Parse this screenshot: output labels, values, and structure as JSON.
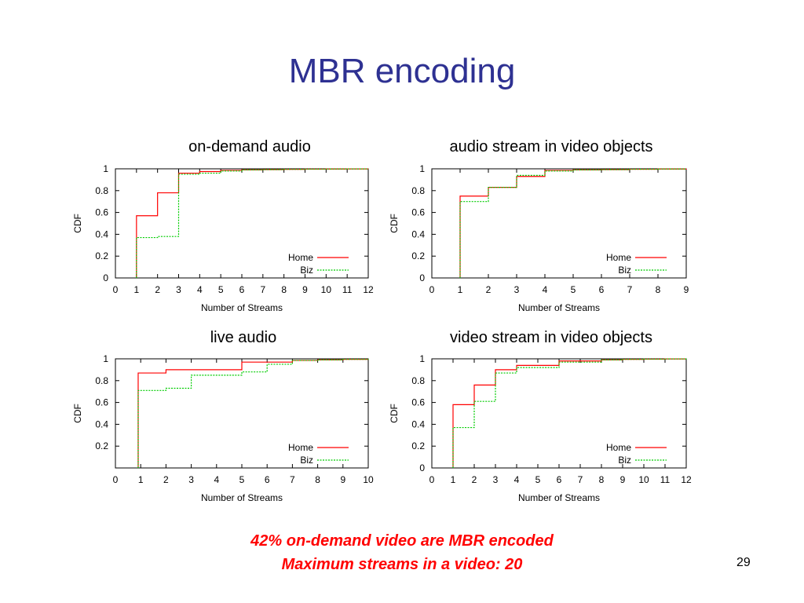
{
  "slide": {
    "title": "MBR encoding",
    "notes": [
      "42% on-demand video are MBR encoded",
      "Maximum streams in a video: 20"
    ],
    "page_number": "29"
  },
  "colors": {
    "title": "#2e3192",
    "home": "#ff0000",
    "biz": "#00cc00",
    "note": "#ff0000"
  },
  "chart_data": [
    {
      "type": "line",
      "title": "on-demand audio",
      "xlabel": "Number of Streams",
      "ylabel": "CDF",
      "xlim": [
        0,
        12
      ],
      "ylim": [
        0,
        1
      ],
      "xticks": [
        "0",
        "1",
        "2",
        "3",
        "4",
        "5",
        "6",
        "7",
        "8",
        "9",
        "10",
        "11",
        "12"
      ],
      "yticks": [
        "0",
        "0.2",
        "0.4",
        "0.6",
        "0.8",
        "1"
      ],
      "legend_position": "bottom-right",
      "series": [
        {
          "name": "Home",
          "style": "solid",
          "x": [
            1,
            1,
            2,
            3,
            4,
            5,
            6,
            7,
            8,
            9,
            10,
            11,
            12
          ],
          "y": [
            0,
            0.57,
            0.78,
            0.96,
            0.975,
            0.985,
            0.99,
            0.993,
            0.995,
            0.997,
            0.998,
            0.999,
            1.0
          ]
        },
        {
          "name": "Biz",
          "style": "dashed",
          "x": [
            1,
            1,
            2,
            3,
            4,
            5,
            6,
            7,
            8,
            9,
            10,
            11,
            12
          ],
          "y": [
            0,
            0.37,
            0.38,
            0.95,
            0.96,
            0.98,
            0.99,
            0.993,
            0.995,
            0.997,
            0.998,
            0.999,
            1.0
          ]
        }
      ]
    },
    {
      "type": "line",
      "title": "audio stream in video objects",
      "xlabel": "Number of Streams",
      "ylabel": "CDF",
      "xlim": [
        0,
        9
      ],
      "ylim": [
        0,
        1
      ],
      "xticks": [
        "0",
        "1",
        "2",
        "3",
        "4",
        "5",
        "6",
        "7",
        "8",
        "9"
      ],
      "yticks": [
        "0",
        "0.2",
        "0.4",
        "0.6",
        "0.8",
        "1"
      ],
      "legend_position": "bottom-right",
      "series": [
        {
          "name": "Home",
          "style": "solid",
          "x": [
            1,
            1,
            2,
            3,
            4,
            5,
            6,
            7,
            8,
            9
          ],
          "y": [
            0,
            0.75,
            0.83,
            0.93,
            0.985,
            0.99,
            0.993,
            0.996,
            0.998,
            1.0
          ]
        },
        {
          "name": "Biz",
          "style": "dashed",
          "x": [
            1,
            1,
            2,
            3,
            4,
            5,
            6,
            7,
            8,
            9
          ],
          "y": [
            0,
            0.7,
            0.83,
            0.94,
            0.98,
            0.99,
            0.993,
            0.996,
            0.998,
            1.0
          ]
        }
      ]
    },
    {
      "type": "line",
      "title": "live audio",
      "xlabel": "Number of Streams",
      "ylabel": "CDF",
      "xlim": [
        0,
        10
      ],
      "ylim": [
        0,
        1
      ],
      "xticks": [
        "0",
        "1",
        "2",
        "3",
        "4",
        "5",
        "6",
        "7",
        "8",
        "9",
        "10"
      ],
      "yticks": [
        "0.2",
        "0.4",
        "0.6",
        "0.8",
        "1"
      ],
      "legend_position": "bottom-right",
      "series": [
        {
          "name": "Home",
          "style": "solid",
          "x": [
            0.9,
            0.9,
            2,
            5,
            7,
            8,
            9,
            10
          ],
          "y": [
            0,
            0.87,
            0.9,
            0.97,
            0.985,
            0.99,
            0.995,
            1.0
          ]
        },
        {
          "name": "Biz",
          "style": "dashed",
          "x": [
            0.9,
            0.9,
            2,
            3,
            5,
            6,
            7,
            8,
            9,
            10
          ],
          "y": [
            0,
            0.71,
            0.73,
            0.85,
            0.88,
            0.95,
            0.985,
            0.99,
            0.995,
            1.0
          ]
        }
      ]
    },
    {
      "type": "line",
      "title": "video stream in video objects",
      "xlabel": "Number of Streams",
      "ylabel": "CDF",
      "xlim": [
        0,
        12
      ],
      "ylim": [
        0,
        1
      ],
      "xticks": [
        "0",
        "1",
        "2",
        "3",
        "4",
        "5",
        "6",
        "7",
        "8",
        "9",
        "10",
        "11",
        "12"
      ],
      "yticks": [
        "0",
        "0.2",
        "0.4",
        "0.6",
        "0.8",
        "1"
      ],
      "legend_position": "bottom-right",
      "series": [
        {
          "name": "Home",
          "style": "solid",
          "x": [
            1,
            1,
            2,
            3,
            4,
            6,
            8,
            9,
            10,
            11,
            12
          ],
          "y": [
            0,
            0.58,
            0.76,
            0.9,
            0.94,
            0.98,
            0.99,
            0.995,
            0.997,
            0.999,
            1.0
          ]
        },
        {
          "name": "Biz",
          "style": "dashed",
          "x": [
            1,
            1,
            2,
            3,
            4,
            6,
            8,
            9,
            10,
            11,
            12
          ],
          "y": [
            0,
            0.37,
            0.61,
            0.87,
            0.92,
            0.97,
            0.99,
            0.995,
            0.997,
            0.999,
            1.0
          ]
        }
      ]
    }
  ]
}
